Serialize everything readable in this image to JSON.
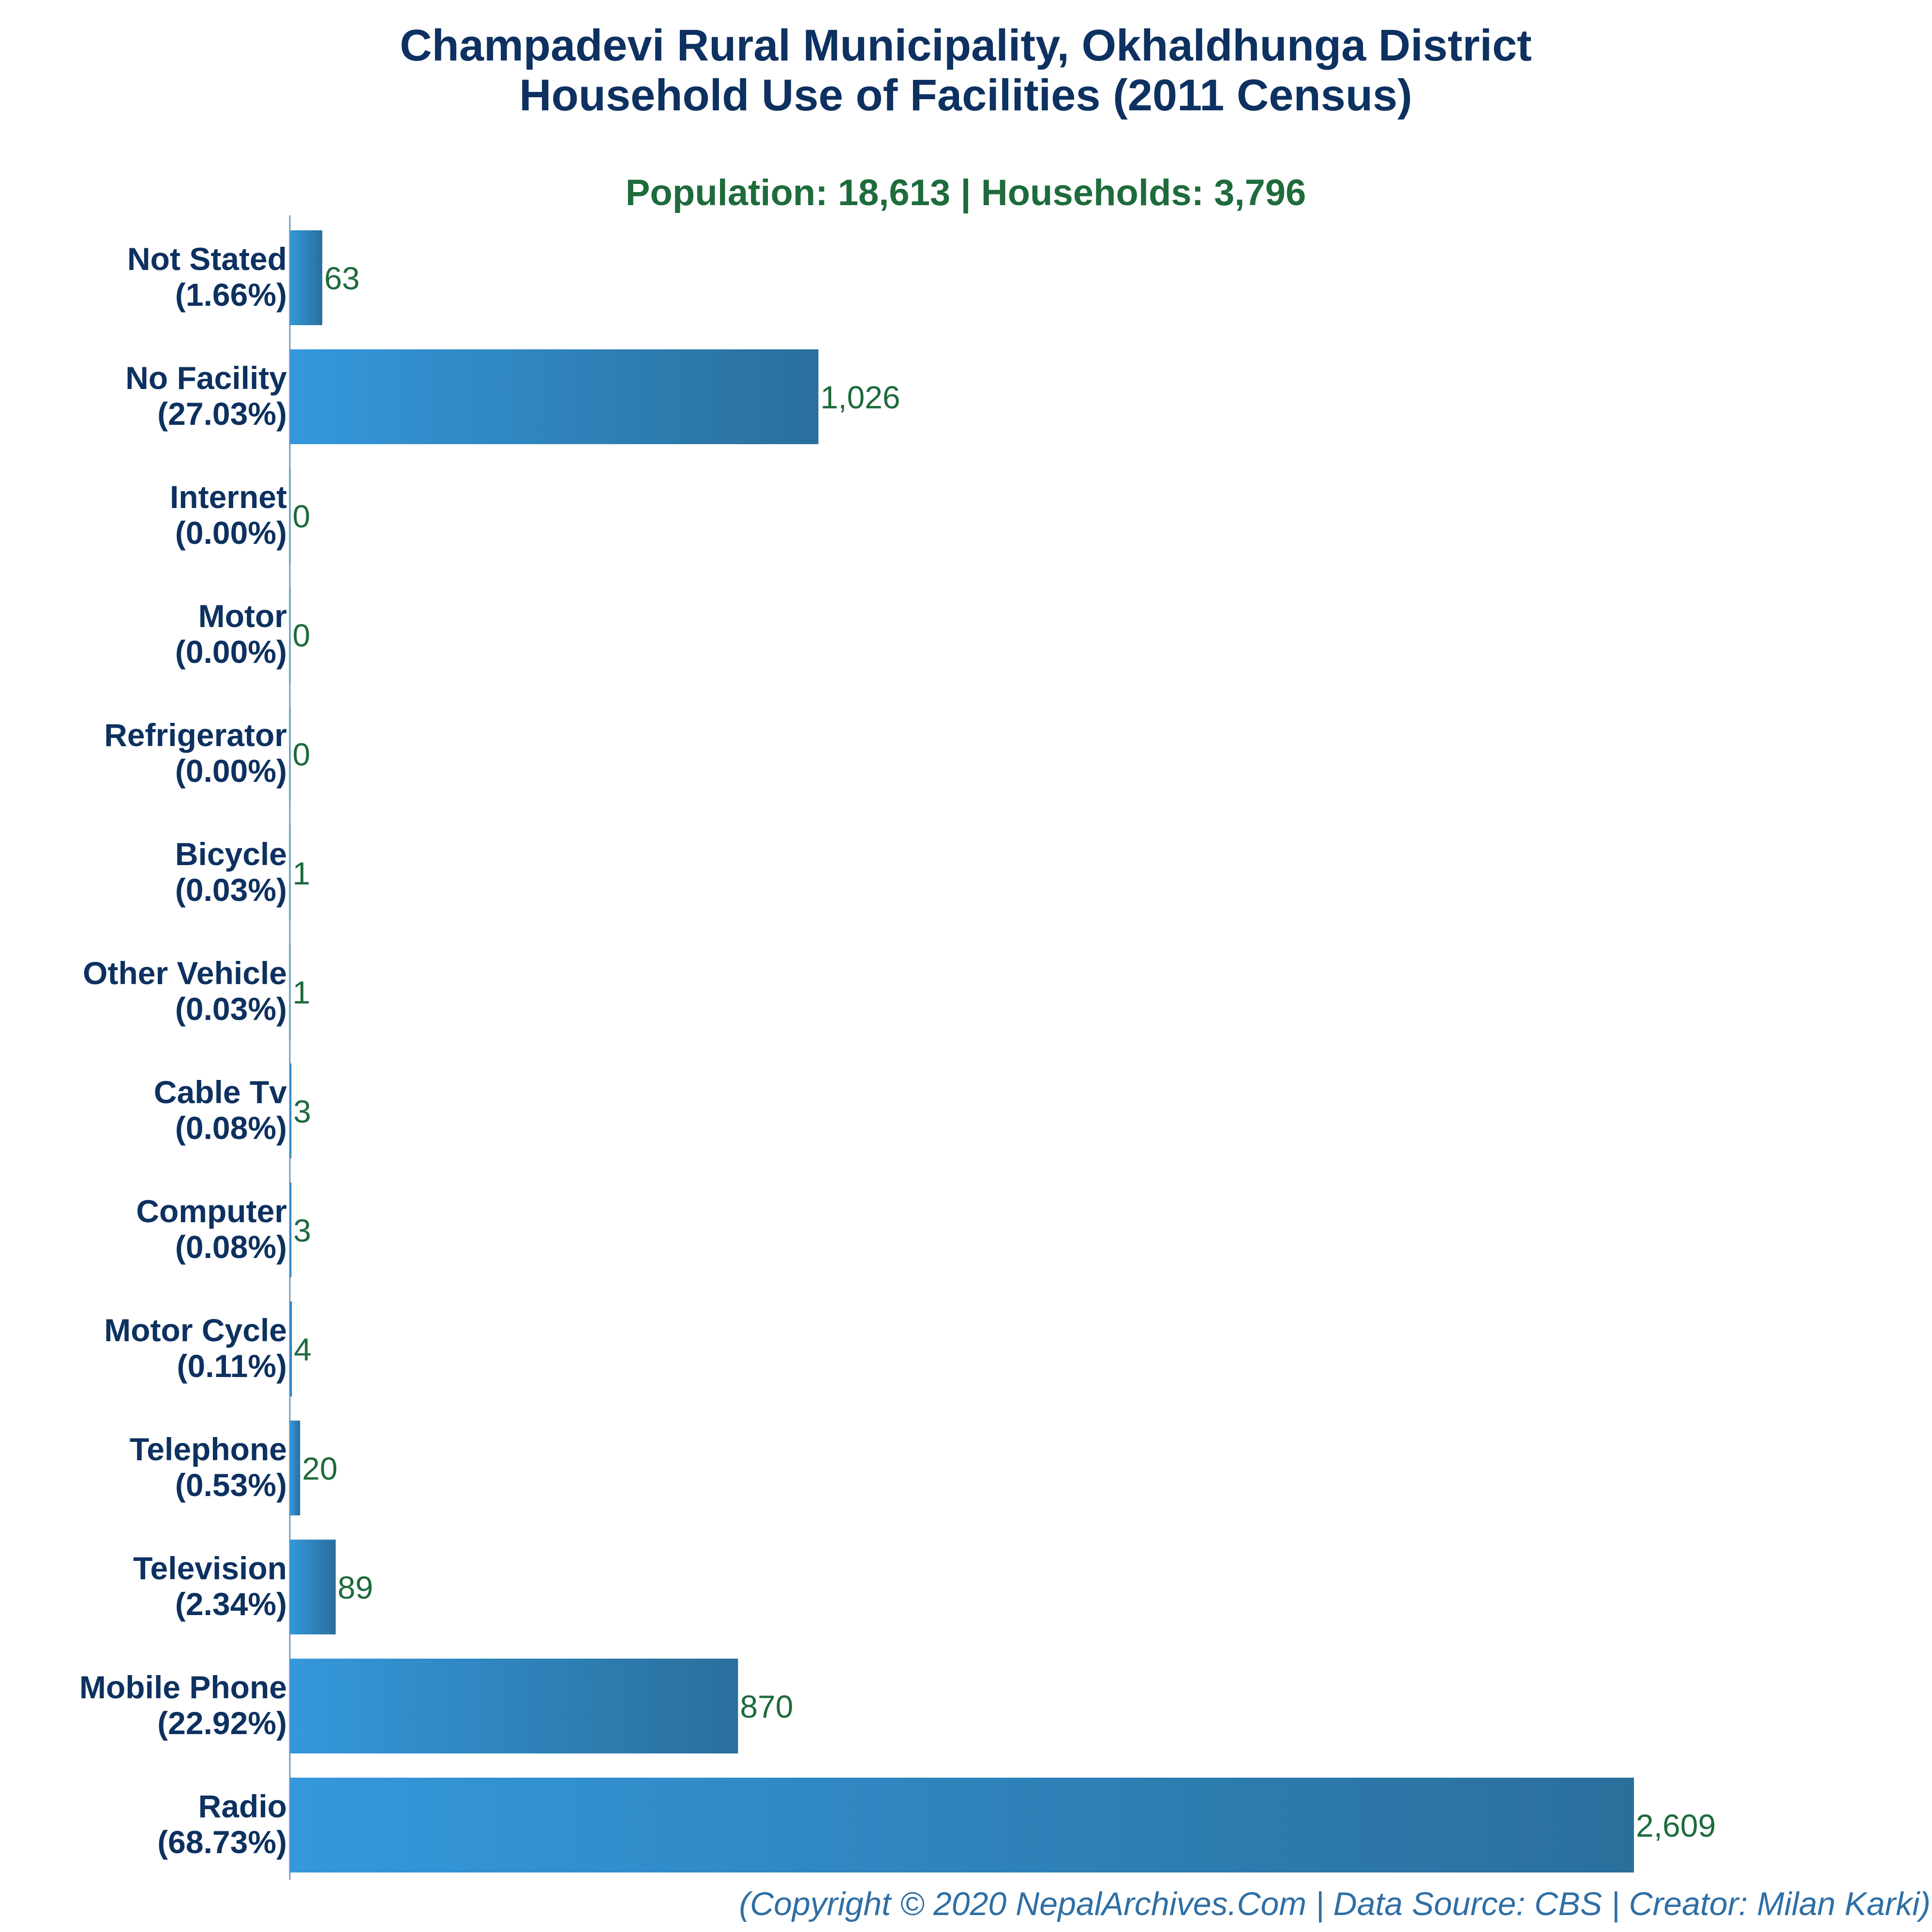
{
  "title_line1": "Champadevi Rural Municipality, Okhaldhunga District",
  "title_line2": "Household Use of Facilities (2011 Census)",
  "subtitle": "Population: 18,613 | Households: 3,796",
  "footer": "(Copyright © 2020 NepalArchives.Com | Data Source: CBS | Creator: Milan Karki)",
  "colors": {
    "bar_light": "#3498db",
    "bar_dark": "#2a6f9c",
    "title": "#0d3160",
    "value": "#1e6b3c",
    "footer": "#2f6fa5"
  },
  "chart_data": {
    "type": "bar",
    "orientation": "horizontal",
    "title": "Champadevi Rural Municipality, Okhaldhunga District\nHousehold Use of Facilities (2011 Census)",
    "subtitle": "Population: 18,613 | Households: 3,796",
    "xlim": [
      0,
      3000
    ],
    "grid": false,
    "categories": [
      "Not Stated",
      "No Facility",
      "Internet",
      "Motor",
      "Refrigerator",
      "Bicycle",
      "Other Vehicle",
      "Cable Tv",
      "Computer",
      "Motor Cycle",
      "Telephone",
      "Television",
      "Mobile Phone",
      "Radio"
    ],
    "percent_labels": [
      "(1.66%)",
      "(27.03%)",
      "(0.00%)",
      "(0.00%)",
      "(0.00%)",
      "(0.03%)",
      "(0.03%)",
      "(0.08%)",
      "(0.08%)",
      "(0.11%)",
      "(0.53%)",
      "(2.34%)",
      "(22.92%)",
      "(68.73%)"
    ],
    "values": [
      63,
      1026,
      0,
      0,
      0,
      1,
      1,
      3,
      3,
      4,
      20,
      89,
      870,
      2609
    ],
    "value_labels": [
      "63",
      "1,026",
      "0",
      "0",
      "0",
      "1",
      "1",
      "3",
      "3",
      "4",
      "20",
      "89",
      "870",
      "2,609"
    ]
  }
}
